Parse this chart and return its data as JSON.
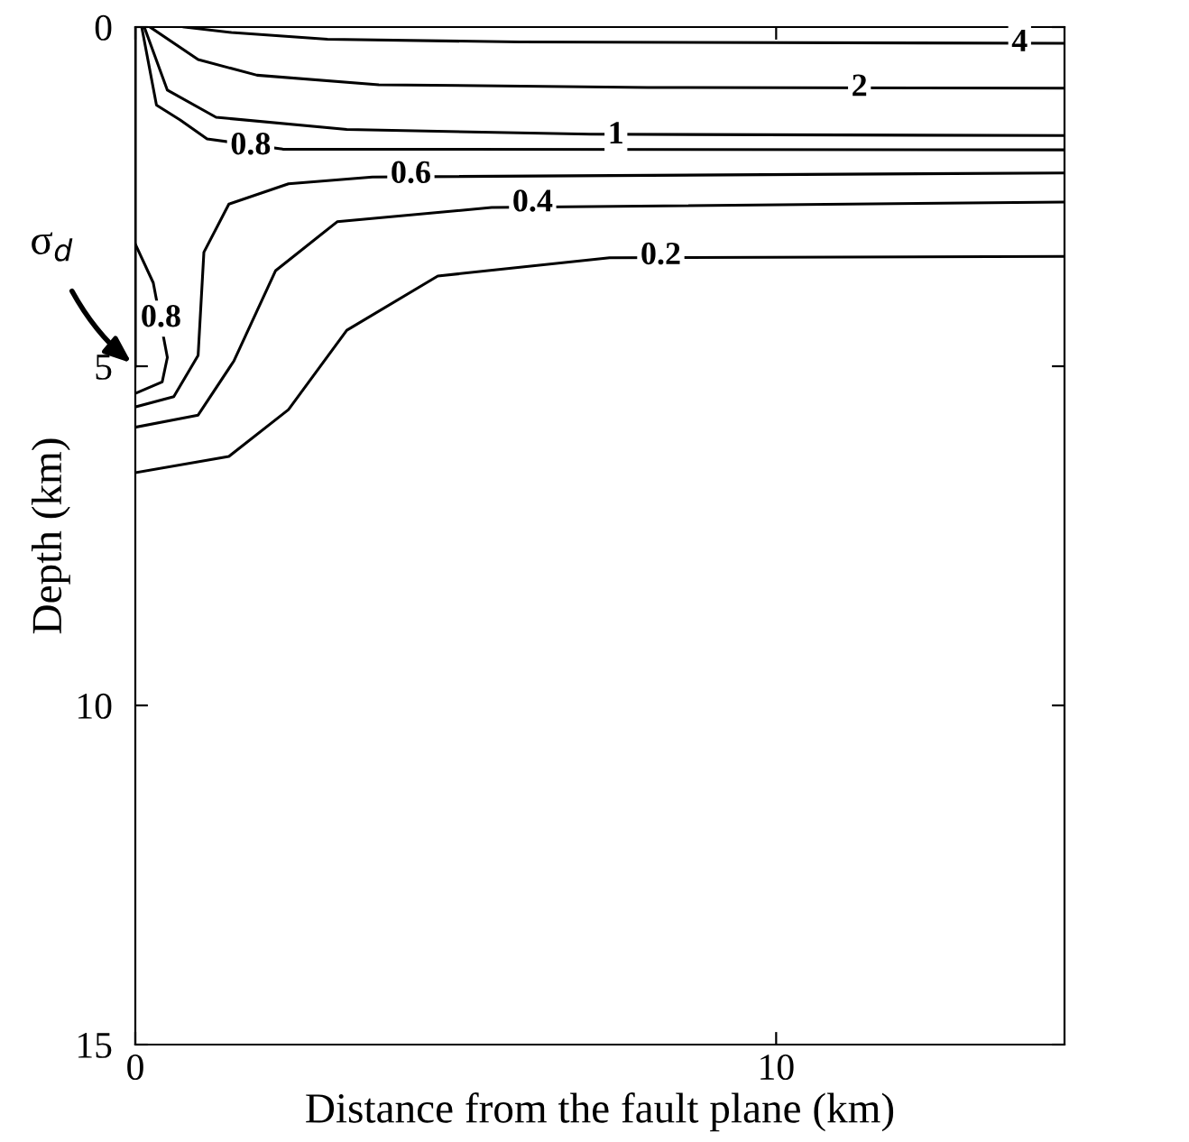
{
  "chart_data": {
    "type": "line",
    "xlabel": "Distance from the fault plane (km)",
    "ylabel": "Depth (km)",
    "xlim": [
      0,
      14.5
    ],
    "ylim": [
      15,
      0
    ],
    "xticks": [
      0,
      10
    ],
    "yticks": [
      0,
      5,
      10,
      15
    ],
    "grid": false,
    "legend": false,
    "marker": "none",
    "line_style": "solid",
    "series": [
      {
        "color": "#000000",
        "x": [
          0.76,
          1.5,
          3,
          6,
          14.5
        ],
        "values": [
          0,
          0.08,
          0.18,
          0.22,
          0.24
        ]
      },
      {
        "color": "#000000",
        "x": [
          0.23,
          0.98,
          1.9,
          3.8,
          8,
          14.5
        ],
        "values": [
          0,
          0.48,
          0.71,
          0.85,
          0.89,
          0.9
        ]
      },
      {
        "color": "#000000",
        "x": [
          0.14,
          0.5,
          1.26,
          3.3,
          7.1,
          14.5
        ],
        "values": [
          0,
          0.93,
          1.33,
          1.51,
          1.58,
          1.6
        ]
      },
      {
        "color": "#000000",
        "x": [
          0.1,
          0.33,
          0.7,
          1.12,
          2.3,
          14.5
        ],
        "values": [
          0,
          1.15,
          1.37,
          1.65,
          1.8,
          1.81
        ]
      },
      {
        "color": "#000000",
        "x": [
          0,
          0.6,
          0.98,
          1.07,
          1.46,
          2.39,
          3.7,
          14.5
        ],
        "values": [
          5.6,
          5.45,
          4.84,
          3.32,
          2.61,
          2.31,
          2.21,
          2.15
        ]
      },
      {
        "color": "#000000",
        "x": [
          0,
          0.98,
          1.54,
          2.19,
          3.15,
          5.56,
          14.5
        ],
        "values": [
          5.9,
          5.72,
          4.92,
          3.59,
          2.87,
          2.66,
          2.58
        ]
      },
      {
        "color": "#000000",
        "x": [
          0,
          1.46,
          2.39,
          3.3,
          4.72,
          7.4,
          14.5
        ],
        "values": [
          6.57,
          6.33,
          5.64,
          4.47,
          3.67,
          3.4,
          3.38
        ]
      },
      {
        "color": "#000000",
        "x": [
          0,
          0.28,
          0.5,
          0.42,
          0
        ],
        "values": [
          3.2,
          3.77,
          4.87,
          5.23,
          5.4
        ]
      },
      {
        "color": "#000000",
        "x": [
          0,
          0
        ],
        "values": [
          0,
          5
        ]
      }
    ],
    "annotations": [
      {
        "text": "4",
        "x": 13.8,
        "y": 0.24
      },
      {
        "text": "2",
        "x": 11.3,
        "y": 0.9
      },
      {
        "text": "1",
        "x": 7.5,
        "y": 1.6
      },
      {
        "text": "0.8",
        "x": 1.8,
        "y": 1.76
      },
      {
        "text": "0.6",
        "x": 4.3,
        "y": 2.18
      },
      {
        "text": "0.4",
        "x": 6.2,
        "y": 2.6
      },
      {
        "text": "0.2",
        "x": 8.2,
        "y": 3.38
      },
      {
        "text": "0.8",
        "x": 0.4,
        "y": 4.3
      },
      {
        "text": "σ$_{d}$",
        "x": 0,
        "y": 5
      }
    ]
  }
}
